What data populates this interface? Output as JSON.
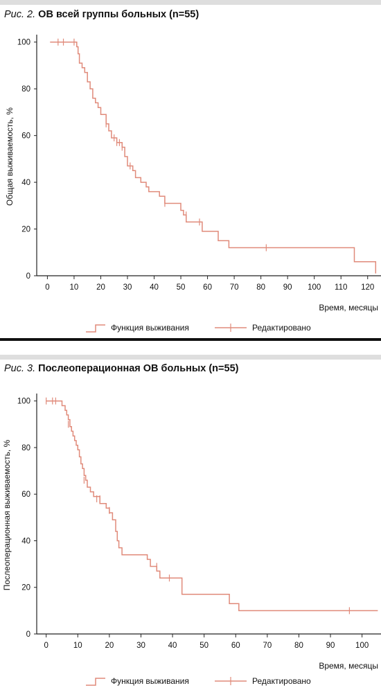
{
  "colors": {
    "curve": "#e08a7a",
    "axis": "#222222"
  },
  "figures": [
    {
      "caption_prefix": "Рис. 2.",
      "caption_title": "ОВ всей группы больных (n=55)",
      "legend": {
        "survival": "Функция выживания",
        "censored": "Редактировано"
      }
    },
    {
      "caption_prefix": "Рис. 3.",
      "caption_title": "Послеоперационная ОВ больных (n=55)",
      "legend": {
        "survival": "Функция выживания",
        "censored": "Редактировано"
      }
    }
  ],
  "chart_data": [
    {
      "type": "line",
      "subtype": "kaplan-meier step",
      "title": "",
      "xlabel": "Время, месяцы",
      "ylabel": "Общая выживаемость, %",
      "xlim": [
        -4,
        125
      ],
      "ylim": [
        0,
        102
      ],
      "xticks": [
        0,
        10,
        20,
        30,
        40,
        50,
        60,
        70,
        80,
        90,
        100,
        110,
        120
      ],
      "yticks": [
        0,
        20,
        40,
        60,
        80,
        100
      ],
      "grid": false,
      "legend_position": "bottom",
      "series": [
        {
          "name": "Функция выживания",
          "steps": [
            [
              1,
              100
            ],
            [
              10,
              100
            ],
            [
              11,
              98
            ],
            [
              11.5,
              95
            ],
            [
              12,
              91
            ],
            [
              13,
              89
            ],
            [
              14,
              87
            ],
            [
              15,
              83
            ],
            [
              16,
              80
            ],
            [
              17,
              76
            ],
            [
              18,
              74
            ],
            [
              19,
              72
            ],
            [
              20,
              69
            ],
            [
              22,
              65
            ],
            [
              23,
              62
            ],
            [
              24,
              59
            ],
            [
              26,
              57
            ],
            [
              28,
              55
            ],
            [
              29,
              51
            ],
            [
              30,
              47
            ],
            [
              32,
              45
            ],
            [
              33,
              42
            ],
            [
              35,
              40
            ],
            [
              37,
              38
            ],
            [
              38,
              36
            ],
            [
              42,
              34
            ],
            [
              44,
              31
            ],
            [
              50,
              28
            ],
            [
              51,
              26
            ],
            [
              52,
              23
            ],
            [
              58,
              19
            ],
            [
              64,
              15
            ],
            [
              68,
              12
            ],
            [
              115,
              12
            ],
            [
              115,
              6
            ],
            [
              123,
              6
            ],
            [
              123,
              1
            ]
          ]
        },
        {
          "name": "Редактировано",
          "points": [
            [
              4,
              100
            ],
            [
              6,
              100
            ],
            [
              10,
              100
            ],
            [
              22,
              65
            ],
            [
              25,
              59
            ],
            [
              26,
              57
            ],
            [
              27,
              57
            ],
            [
              28,
              55
            ],
            [
              31,
              47
            ],
            [
              44,
              31
            ],
            [
              52,
              26
            ],
            [
              57,
              23
            ],
            [
              82,
              12
            ]
          ]
        }
      ]
    },
    {
      "type": "line",
      "subtype": "kaplan-meier step",
      "title": "",
      "xlabel": "Время, месяцы",
      "ylabel": "Послеоперационная выживаемость, %",
      "xlim": [
        -3,
        106
      ],
      "ylim": [
        0,
        102
      ],
      "xticks": [
        0,
        10,
        20,
        30,
        40,
        50,
        60,
        70,
        80,
        90,
        100
      ],
      "yticks": [
        0,
        20,
        40,
        60,
        80,
        100
      ],
      "grid": false,
      "legend_position": "bottom",
      "series": [
        {
          "name": "Функция выживания",
          "steps": [
            [
              0,
              100
            ],
            [
              4,
              100
            ],
            [
              5,
              98
            ],
            [
              6,
              96
            ],
            [
              6.5,
              94
            ],
            [
              7,
              92
            ],
            [
              7.5,
              89
            ],
            [
              8,
              87
            ],
            [
              8.5,
              85
            ],
            [
              9,
              83
            ],
            [
              9.5,
              81
            ],
            [
              10,
              79
            ],
            [
              10.5,
              76
            ],
            [
              11,
              73
            ],
            [
              11.5,
              71
            ],
            [
              12,
              68
            ],
            [
              12.5,
              66
            ],
            [
              13,
              63
            ],
            [
              14,
              61
            ],
            [
              15,
              59
            ],
            [
              17,
              56
            ],
            [
              19,
              54
            ],
            [
              20,
              52
            ],
            [
              21,
              49
            ],
            [
              22,
              44
            ],
            [
              22.5,
              40
            ],
            [
              23,
              37
            ],
            [
              24,
              34
            ],
            [
              26,
              34
            ],
            [
              32,
              32
            ],
            [
              33,
              29
            ],
            [
              35,
              27
            ],
            [
              36,
              24
            ],
            [
              43,
              24
            ],
            [
              43,
              17
            ],
            [
              58,
              17
            ],
            [
              58,
              13
            ],
            [
              61,
              13
            ],
            [
              61,
              10
            ],
            [
              105,
              10
            ]
          ]
        },
        {
          "name": "Редактировано",
          "points": [
            [
              0,
              100
            ],
            [
              2,
              100
            ],
            [
              3,
              100
            ],
            [
              7,
              90
            ],
            [
              12,
              66
            ],
            [
              16,
              58
            ],
            [
              17,
              58
            ],
            [
              20,
              53
            ],
            [
              35,
              29
            ],
            [
              39,
              24
            ],
            [
              96,
              10
            ]
          ]
        }
      ]
    }
  ]
}
